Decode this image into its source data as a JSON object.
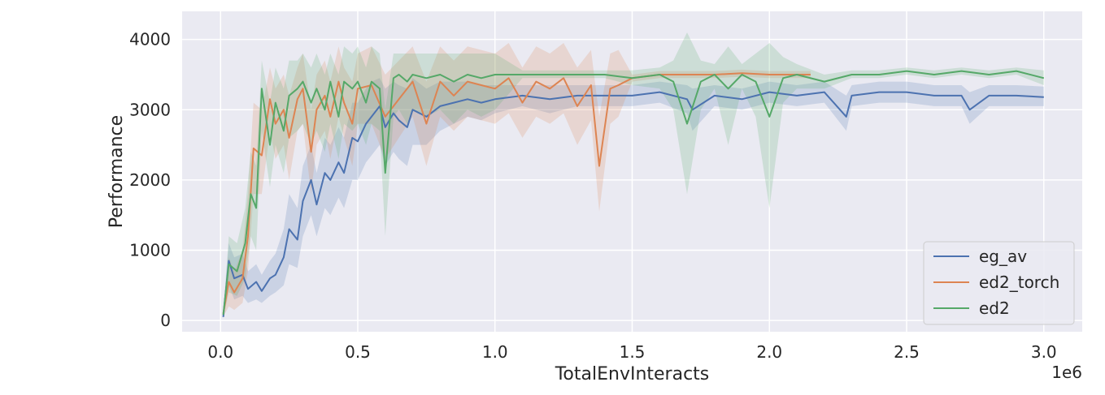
{
  "chart_data": {
    "type": "line",
    "xlabel": "TotalEnvInteracts",
    "ylabel": "Performance",
    "x_multiplier_label": "1e6",
    "xlim": [
      -0.14,
      3.14
    ],
    "ylim": [
      -160,
      4400
    ],
    "x_ticks": [
      {
        "value": 0.0,
        "label": "0.0"
      },
      {
        "value": 0.5,
        "label": "0.5"
      },
      {
        "value": 1.0,
        "label": "1.0"
      },
      {
        "value": 1.5,
        "label": "1.5"
      },
      {
        "value": 2.0,
        "label": "2.0"
      },
      {
        "value": 2.5,
        "label": "2.5"
      },
      {
        "value": 3.0,
        "label": "3.0"
      }
    ],
    "y_ticks": [
      {
        "value": 0,
        "label": "0"
      },
      {
        "value": 1000,
        "label": "1000"
      },
      {
        "value": 2000,
        "label": "2000"
      },
      {
        "value": 3000,
        "label": "3000"
      },
      {
        "value": 4000,
        "label": "4000"
      }
    ],
    "grid": true,
    "legend_position": "lower-right",
    "series": [
      {
        "name": "eg_av",
        "color": "#4c72b0",
        "x": [
          0.01,
          0.03,
          0.05,
          0.08,
          0.1,
          0.13,
          0.15,
          0.18,
          0.2,
          0.23,
          0.25,
          0.28,
          0.3,
          0.33,
          0.35,
          0.38,
          0.4,
          0.43,
          0.45,
          0.48,
          0.5,
          0.53,
          0.55,
          0.58,
          0.6,
          0.63,
          0.65,
          0.68,
          0.7,
          0.75,
          0.8,
          0.85,
          0.9,
          0.95,
          1.0,
          1.1,
          1.2,
          1.3,
          1.4,
          1.5,
          1.6,
          1.7,
          1.72,
          1.8,
          1.9,
          2.0,
          2.1,
          2.2,
          2.28,
          2.3,
          2.4,
          2.5,
          2.6,
          2.7,
          2.73,
          2.8,
          2.9,
          3.0
        ],
        "y": [
          50,
          850,
          600,
          650,
          450,
          550,
          420,
          600,
          650,
          900,
          1300,
          1150,
          1700,
          2000,
          1650,
          2100,
          2000,
          2250,
          2100,
          2600,
          2550,
          2800,
          2900,
          3050,
          2750,
          2950,
          2850,
          2750,
          3000,
          2900,
          3050,
          3100,
          3150,
          3100,
          3150,
          3200,
          3150,
          3200,
          3200,
          3200,
          3250,
          3150,
          3000,
          3200,
          3150,
          3250,
          3200,
          3250,
          2900,
          3200,
          3250,
          3250,
          3200,
          3200,
          3000,
          3200,
          3200,
          3180
        ],
        "lower": [
          30,
          500,
          300,
          350,
          250,
          300,
          250,
          350,
          400,
          500,
          800,
          750,
          1200,
          1500,
          1200,
          1600,
          1500,
          1750,
          1600,
          2000,
          2000,
          2250,
          2350,
          2500,
          2200,
          2400,
          2300,
          2200,
          2500,
          2500,
          2700,
          2800,
          2900,
          2850,
          2950,
          3050,
          2950,
          3050,
          3050,
          3050,
          3100,
          2950,
          2700,
          3050,
          3000,
          3100,
          3050,
          3100,
          2700,
          3050,
          3100,
          3100,
          3050,
          3050,
          2800,
          3050,
          3050,
          3050
        ],
        "upper": [
          80,
          1100,
          900,
          950,
          700,
          800,
          650,
          850,
          950,
          1300,
          1800,
          1600,
          2200,
          2500,
          2100,
          2600,
          2500,
          2750,
          2600,
          3100,
          3100,
          3300,
          3400,
          3450,
          3300,
          3400,
          3350,
          3300,
          3450,
          3300,
          3400,
          3400,
          3400,
          3350,
          3350,
          3350,
          3350,
          3350,
          3350,
          3350,
          3400,
          3350,
          3300,
          3350,
          3300,
          3400,
          3350,
          3400,
          3200,
          3350,
          3400,
          3400,
          3350,
          3350,
          3250,
          3350,
          3350,
          3330
        ]
      },
      {
        "name": "ed2_torch",
        "color": "#dd8452",
        "x": [
          0.01,
          0.03,
          0.05,
          0.08,
          0.1,
          0.12,
          0.15,
          0.18,
          0.2,
          0.23,
          0.25,
          0.28,
          0.3,
          0.33,
          0.35,
          0.38,
          0.4,
          0.43,
          0.45,
          0.48,
          0.5,
          0.55,
          0.6,
          0.65,
          0.7,
          0.75,
          0.8,
          0.85,
          0.9,
          0.95,
          1.0,
          1.05,
          1.1,
          1.15,
          1.2,
          1.25,
          1.3,
          1.35,
          1.38,
          1.42,
          1.45,
          1.5,
          1.6,
          1.7,
          1.8,
          1.9,
          2.0,
          2.1,
          2.15
        ],
        "y": [
          100,
          550,
          400,
          600,
          1200,
          2450,
          2350,
          3150,
          2800,
          3000,
          2600,
          3150,
          3300,
          2400,
          3000,
          3200,
          2900,
          3400,
          3100,
          2800,
          3300,
          3350,
          2900,
          3150,
          3400,
          2800,
          3400,
          3200,
          3400,
          3350,
          3300,
          3450,
          3100,
          3400,
          3300,
          3450,
          3050,
          3350,
          2200,
          3300,
          3350,
          3450,
          3500,
          3500,
          3500,
          3520,
          3500,
          3500,
          3500
        ],
        "lower": [
          50,
          200,
          150,
          250,
          700,
          1800,
          1800,
          2700,
          2300,
          2500,
          2000,
          2700,
          2800,
          1800,
          2500,
          2700,
          2300,
          2900,
          2600,
          2200,
          2800,
          2800,
          2300,
          2600,
          2900,
          2200,
          2900,
          2700,
          2900,
          2850,
          2800,
          2950,
          2600,
          2900,
          2800,
          2950,
          2500,
          2850,
          1550,
          2800,
          2900,
          3400,
          3450,
          3450,
          3450,
          3470,
          3450,
          3450,
          3450
        ],
        "upper": [
          150,
          900,
          700,
          1000,
          1800,
          3100,
          3000,
          3600,
          3300,
          3500,
          3200,
          3600,
          3800,
          3000,
          3500,
          3700,
          3400,
          3900,
          3600,
          3400,
          3800,
          3900,
          3500,
          3700,
          3900,
          3400,
          3900,
          3700,
          3900,
          3850,
          3800,
          3950,
          3600,
          3900,
          3800,
          3950,
          3600,
          3850,
          2900,
          3800,
          3850,
          3500,
          3550,
          3550,
          3550,
          3570,
          3550,
          3550,
          3550
        ]
      },
      {
        "name": "ed2",
        "color": "#55a868",
        "x": [
          0.01,
          0.03,
          0.06,
          0.09,
          0.11,
          0.13,
          0.15,
          0.18,
          0.2,
          0.23,
          0.25,
          0.28,
          0.3,
          0.33,
          0.35,
          0.38,
          0.4,
          0.43,
          0.45,
          0.48,
          0.5,
          0.53,
          0.55,
          0.58,
          0.6,
          0.63,
          0.65,
          0.68,
          0.7,
          0.75,
          0.8,
          0.85,
          0.9,
          0.95,
          1.0,
          1.1,
          1.2,
          1.3,
          1.4,
          1.5,
          1.6,
          1.65,
          1.7,
          1.75,
          1.8,
          1.85,
          1.9,
          1.95,
          2.0,
          2.05,
          2.1,
          2.2,
          2.3,
          2.4,
          2.5,
          2.6,
          2.7,
          2.8,
          2.9,
          3.0
        ],
        "y": [
          80,
          800,
          700,
          1100,
          1800,
          1600,
          3300,
          2500,
          3100,
          2700,
          3200,
          3300,
          3400,
          3100,
          3300,
          3000,
          3400,
          2900,
          3400,
          3300,
          3400,
          3100,
          3400,
          3300,
          2100,
          3450,
          3500,
          3400,
          3500,
          3450,
          3500,
          3400,
          3500,
          3450,
          3500,
          3500,
          3500,
          3500,
          3500,
          3450,
          3500,
          3400,
          2800,
          3400,
          3500,
          3300,
          3500,
          3400,
          2900,
          3450,
          3500,
          3400,
          3500,
          3500,
          3550,
          3500,
          3550,
          3500,
          3550,
          3450
        ],
        "lower": [
          40,
          400,
          350,
          600,
          1200,
          1000,
          2700,
          1900,
          2500,
          2100,
          2600,
          2700,
          2800,
          2500,
          2700,
          2400,
          2800,
          2300,
          2800,
          2700,
          2800,
          2500,
          2800,
          2700,
          1200,
          2900,
          3000,
          2800,
          3000,
          2900,
          3000,
          2800,
          3000,
          2900,
          3000,
          3450,
          3450,
          3450,
          3450,
          3350,
          3300,
          3000,
          1800,
          3000,
          3300,
          2500,
          3300,
          2900,
          1600,
          3100,
          3300,
          3300,
          3450,
          3450,
          3500,
          3450,
          3500,
          3450,
          3500,
          3350
        ],
        "upper": [
          120,
          1200,
          1100,
          1600,
          2400,
          2200,
          3700,
          3100,
          3600,
          3300,
          3700,
          3700,
          3800,
          3600,
          3800,
          3500,
          3800,
          3500,
          3900,
          3800,
          3900,
          3600,
          3900,
          3800,
          3000,
          3800,
          3800,
          3800,
          3800,
          3800,
          3800,
          3800,
          3800,
          3800,
          3800,
          3560,
          3560,
          3560,
          3560,
          3560,
          3600,
          3700,
          4100,
          3700,
          3650,
          3900,
          3650,
          3800,
          3950,
          3750,
          3650,
          3500,
          3560,
          3560,
          3600,
          3560,
          3600,
          3560,
          3600,
          3560
        ]
      }
    ]
  }
}
